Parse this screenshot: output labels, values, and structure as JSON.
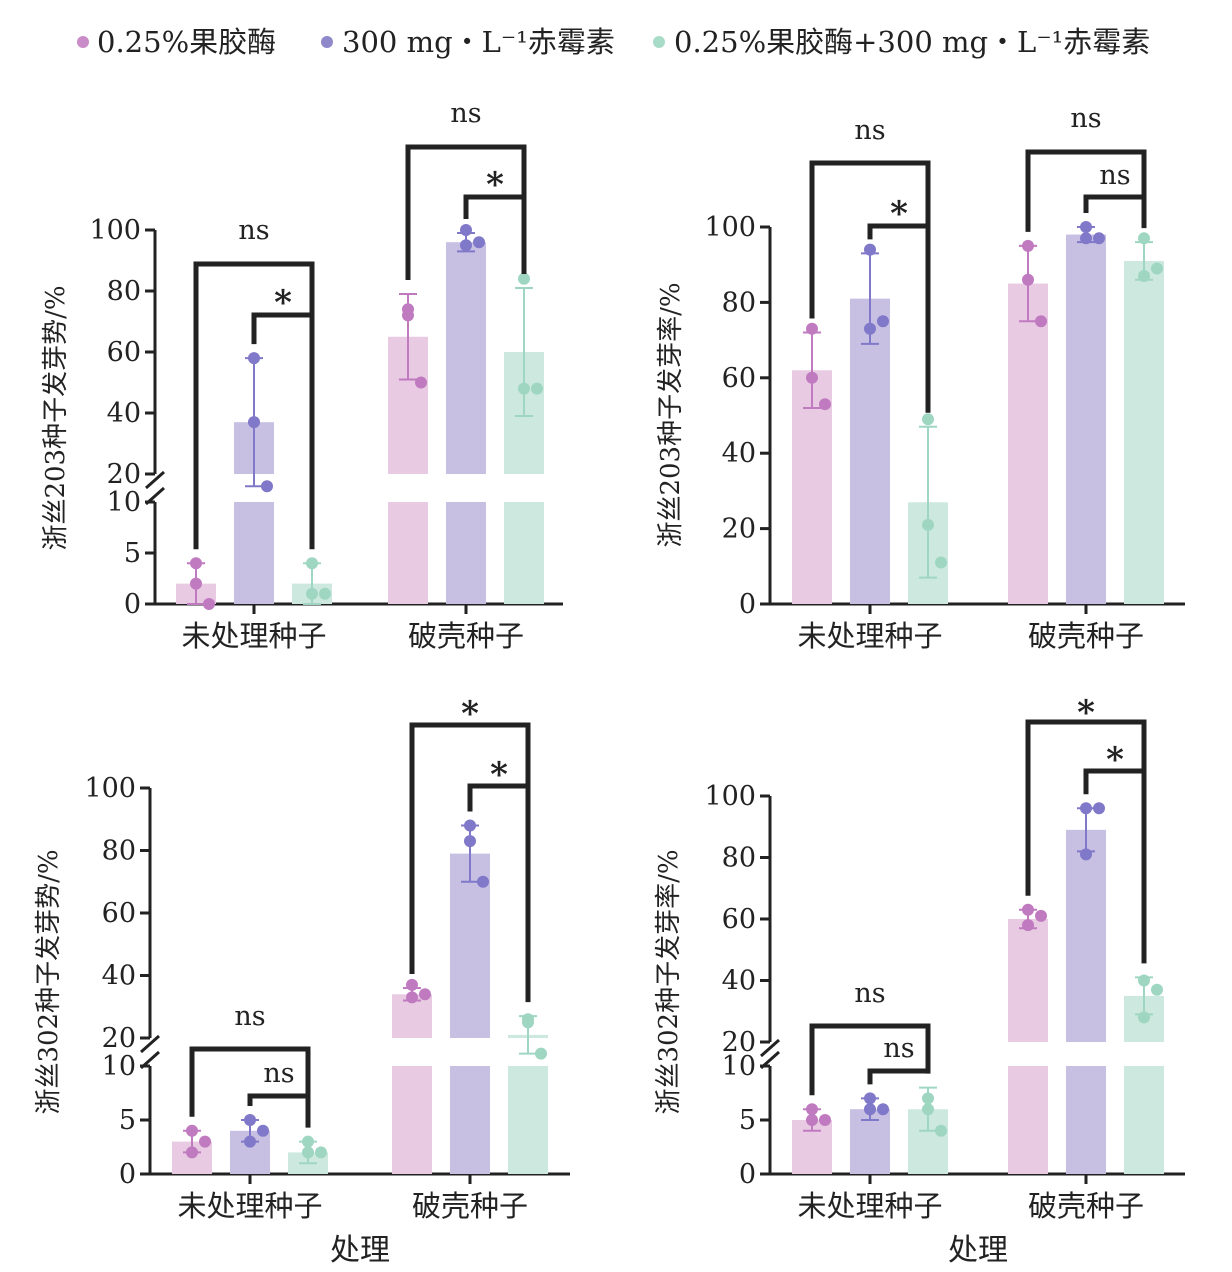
{
  "legend": [
    {
      "label": "0.25%果胶酶",
      "color": "#c98cc9"
    },
    {
      "label": "300 mg・L⁻¹赤霉素",
      "color": "#8f89cc"
    },
    {
      "label": "0.25%果胶酶+300 mg・L⁻¹赤霉素",
      "color": "#a8dcc8"
    }
  ],
  "colors": {
    "bars": [
      "#e8cbe2",
      "#c7c0e3",
      "#cde9df"
    ],
    "points": [
      "#c07ac0",
      "#8078c8",
      "#9ed6c2"
    ],
    "axis": "#222222"
  },
  "chart_data": [
    {
      "type": "bar",
      "id": "p1",
      "ylabel": "浙丝203种子发芽势/%",
      "categories": [
        "未处理种子",
        "破壳种子"
      ],
      "series": [
        {
          "name": "0.25%果胶酶",
          "means": [
            2,
            65
          ],
          "sd": [
            2,
            14
          ],
          "points": [
            [
              4,
              2,
              0
            ],
            [
              74,
              72,
              50
            ]
          ]
        },
        {
          "name": "300 mg・L⁻¹赤霉素",
          "means": [
            37,
            96
          ],
          "sd": [
            21,
            3
          ],
          "points": [
            [
              58,
              37,
              16
            ],
            [
              100,
              95,
              96
            ]
          ]
        },
        {
          "name": "0.25%果胶酶+300 mg・L⁻¹赤霉素",
          "means": [
            2,
            60
          ],
          "sd": [
            2,
            21
          ],
          "points": [
            [
              4,
              1,
              1
            ],
            [
              84,
              48,
              48
            ]
          ]
        }
      ],
      "broken_axis": true,
      "yticks_lower": [
        0,
        5,
        10
      ],
      "yticks_upper": [
        20,
        40,
        60,
        80,
        100
      ],
      "ylim_lower": [
        0,
        10
      ],
      "ylim_upper": [
        10,
        100
      ],
      "annotations": [
        {
          "group": "未处理种子",
          "outer": "ns",
          "inner": "*"
        },
        {
          "group": "破壳种子",
          "outer": "ns",
          "inner": "*"
        }
      ]
    },
    {
      "type": "bar",
      "id": "p2",
      "ylabel": "浙丝203种子发芽率/%",
      "categories": [
        "未处理种子",
        "破壳种子"
      ],
      "series": [
        {
          "name": "0.25%果胶酶",
          "means": [
            62,
            85
          ],
          "sd": [
            10,
            10
          ],
          "points": [
            [
              73,
              60,
              53
            ],
            [
              95,
              86,
              75
            ]
          ]
        },
        {
          "name": "300 mg・L⁻¹赤霉素",
          "means": [
            81,
            98
          ],
          "sd": [
            12,
            2
          ],
          "points": [
            [
              94,
              73,
              75
            ],
            [
              97,
              100,
              97
            ]
          ]
        },
        {
          "name": "0.25%果胶酶+300 mg・L⁻¹赤霉素",
          "means": [
            27,
            91
          ],
          "sd": [
            20,
            5
          ],
          "points": [
            [
              49,
              21,
              11
            ],
            [
              97,
              87,
              89
            ]
          ]
        }
      ],
      "broken_axis": false,
      "yticks": [
        0,
        20,
        40,
        60,
        80,
        100
      ],
      "ylim": [
        0,
        100
      ],
      "annotations": [
        {
          "group": "未处理种子",
          "outer": "ns",
          "inner": "*"
        },
        {
          "group": "破壳种子",
          "outer": "ns",
          "inner": "ns"
        }
      ]
    },
    {
      "type": "bar",
      "id": "p3",
      "ylabel": "浙丝302种子发芽势/%",
      "categories": [
        "未处理种子",
        "破壳种子"
      ],
      "xlabel": "处理",
      "series": [
        {
          "name": "0.25%果胶酶",
          "means": [
            3,
            34
          ],
          "sd": [
            1,
            2
          ],
          "points": [
            [
              4,
              2,
              3
            ],
            [
              37,
              33,
              34
            ]
          ]
        },
        {
          "name": "300 mg・L⁻¹赤霉素",
          "means": [
            4,
            79
          ],
          "sd": [
            1,
            9
          ],
          "points": [
            [
              5,
              3,
              4
            ],
            [
              88,
              83,
              70
            ]
          ]
        },
        {
          "name": "0.25%果胶酶+300 mg・L⁻¹赤霉素",
          "means": [
            2,
            21
          ],
          "sd": [
            1,
            6
          ],
          "points": [
            [
              3,
              2,
              2
            ],
            [
              26,
              25,
              15
            ]
          ]
        }
      ],
      "broken_axis": true,
      "yticks_lower": [
        0,
        5,
        10
      ],
      "yticks_upper": [
        20,
        40,
        60,
        80,
        100
      ],
      "ylim_lower": [
        0,
        10
      ],
      "ylim_upper": [
        10,
        100
      ],
      "annotations": [
        {
          "group": "未处理种子",
          "outer": "ns",
          "inner": "ns"
        },
        {
          "group": "破壳种子",
          "outer": "*",
          "inner": "*"
        }
      ]
    },
    {
      "type": "bar",
      "id": "p4",
      "ylabel": "浙丝302种子发芽率/%",
      "categories": [
        "未处理种子",
        "破壳种子"
      ],
      "xlabel": "处理",
      "series": [
        {
          "name": "0.25%果胶酶",
          "means": [
            5,
            60
          ],
          "sd": [
            1,
            3
          ],
          "points": [
            [
              6,
              5,
              5
            ],
            [
              63,
              58,
              61
            ]
          ]
        },
        {
          "name": "300 mg・L⁻¹赤霉素",
          "means": [
            6,
            89
          ],
          "sd": [
            1,
            7
          ],
          "points": [
            [
              7,
              6,
              6
            ],
            [
              96,
              81,
              96
            ]
          ]
        },
        {
          "name": "0.25%果胶酶+300 mg・L⁻¹赤霉素",
          "means": [
            6,
            35
          ],
          "sd": [
            2,
            6
          ],
          "points": [
            [
              7,
              6,
              4
            ],
            [
              40,
              28,
              37
            ]
          ]
        }
      ],
      "broken_axis": true,
      "yticks_lower": [
        0,
        5,
        10
      ],
      "yticks_upper": [
        20,
        40,
        60,
        80,
        100
      ],
      "ylim_lower": [
        0,
        10
      ],
      "ylim_upper": [
        10,
        100
      ],
      "annotations": [
        {
          "group": "未处理种子",
          "outer": "ns",
          "inner": "ns"
        },
        {
          "group": "破壳种子",
          "outer": "*",
          "inner": "*"
        }
      ]
    }
  ]
}
